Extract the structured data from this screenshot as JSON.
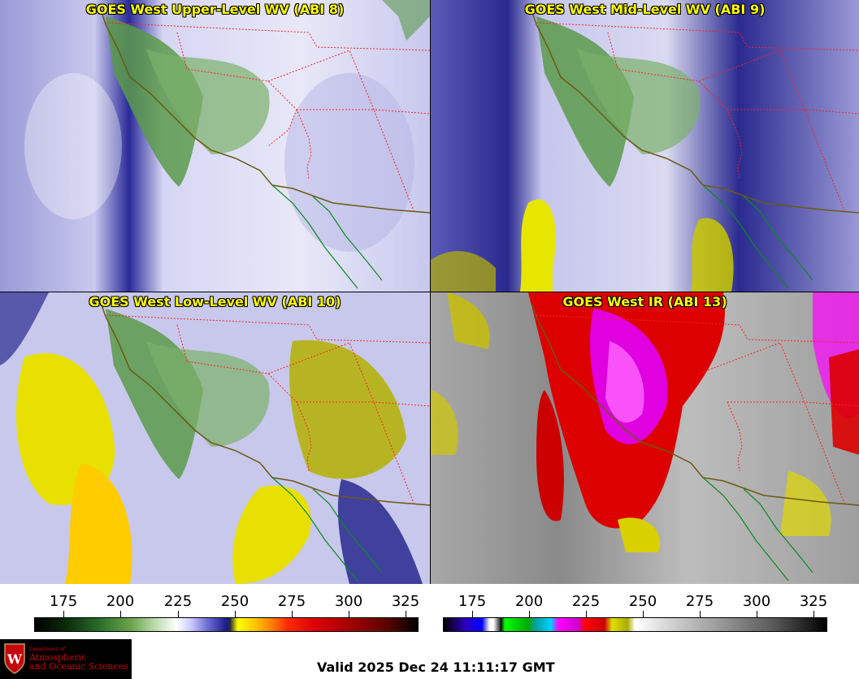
{
  "panels": [
    {
      "title": "GOES West Upper-Level WV (ABI 8)",
      "style": "upper"
    },
    {
      "title": "GOES West Mid-Level WV (ABI 9)",
      "style": "mid"
    },
    {
      "title": "GOES West Low-Level WV (ABI 10)",
      "style": "low"
    },
    {
      "title": "GOES West IR (ABI 13)",
      "style": "ir"
    }
  ],
  "colorbars": {
    "wv": {
      "ticks": [
        "175",
        "200",
        "225",
        "250",
        "275",
        "300",
        "325"
      ]
    },
    "ir": {
      "ticks": [
        "175",
        "200",
        "225",
        "250",
        "275",
        "300",
        "325"
      ]
    }
  },
  "logo": {
    "dept": "Department of",
    "name_line1": "Atmospheric",
    "name_line2": "and Oceanic Sciences"
  },
  "valid_time": "Valid 2025 Dec 24 11:11:17 GMT",
  "colors": {
    "title_text": "#ffff00",
    "state_border": "#ff2020",
    "coast": "#6b5a12",
    "mexico_coast": "#0a8a20"
  }
}
